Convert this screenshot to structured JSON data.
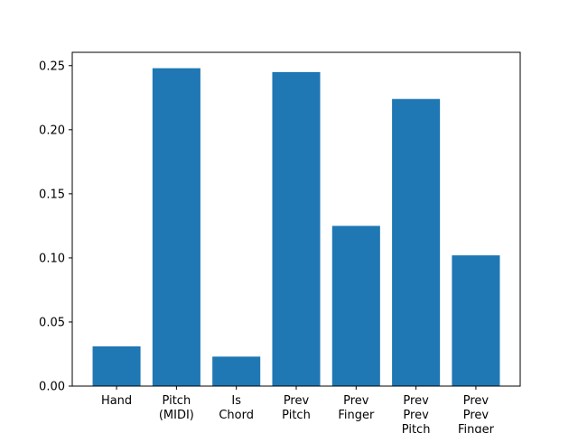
{
  "chart_data": {
    "type": "bar",
    "title": "",
    "xlabel": "",
    "ylabel": "",
    "categories": [
      [
        "Hand"
      ],
      [
        "Pitch",
        "(MIDI)"
      ],
      [
        "Is",
        "Chord"
      ],
      [
        "Prev",
        "Pitch"
      ],
      [
        "Prev",
        "Finger"
      ],
      [
        "Prev",
        "Prev",
        "Pitch"
      ],
      [
        "Prev",
        "Prev",
        "Finger"
      ]
    ],
    "values": [
      0.031,
      0.248,
      0.023,
      0.245,
      0.125,
      0.224,
      0.102
    ],
    "ylim": [
      0,
      0.25
    ],
    "yticks": [
      "0.00",
      "0.05",
      "0.10",
      "0.15",
      "0.20",
      "0.25"
    ],
    "bar_color": "#1f77b4",
    "grid": false,
    "legend": "none"
  }
}
